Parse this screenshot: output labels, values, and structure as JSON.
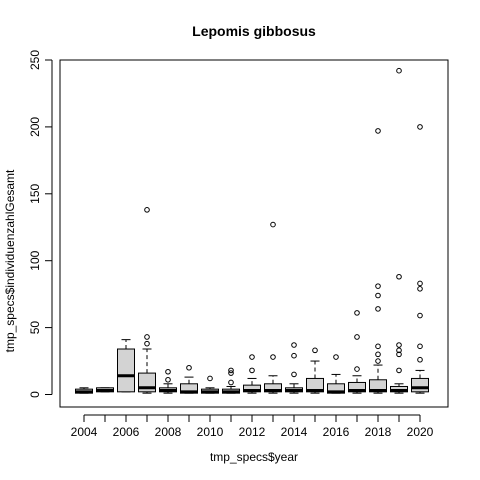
{
  "chart_data": {
    "type": "boxplot",
    "title": "Lepomis gibbosus",
    "xlabel": "tmp_specs$year",
    "ylabel": "tmp_specs$individuenzahlGesamt",
    "ylim": [
      0,
      250
    ],
    "y_ticks": [
      "0",
      "50",
      "100",
      "150",
      "200",
      "250"
    ],
    "x_tick_labels": [
      "2004",
      "2006",
      "2008",
      "2010",
      "2012",
      "2014",
      "2016",
      "2018",
      "2020"
    ],
    "box_fill": "#d3d3d3",
    "categories": [
      "2004",
      "2005",
      "2006",
      "2007",
      "2008",
      "2009",
      "2010",
      "2011",
      "2012",
      "2013",
      "2014",
      "2015",
      "2016",
      "2017",
      "2018",
      "2019",
      "2020"
    ],
    "boxes": [
      {
        "year": "2004",
        "whisker_low": 1,
        "q1": 1,
        "median": 2,
        "q3": 4,
        "whisker_high": 5,
        "outliers": []
      },
      {
        "year": "2005",
        "whisker_low": 2,
        "q1": 2,
        "median": 3,
        "q3": 5,
        "whisker_high": 5,
        "outliers": []
      },
      {
        "year": "2006",
        "whisker_low": 2,
        "q1": 2,
        "median": 14,
        "q3": 34,
        "whisker_high": 41,
        "outliers": []
      },
      {
        "year": "2007",
        "whisker_low": 1,
        "q1": 2,
        "median": 5,
        "q3": 16,
        "whisker_high": 34,
        "outliers": [
          38,
          43,
          138
        ]
      },
      {
        "year": "2008",
        "whisker_low": 1,
        "q1": 2,
        "median": 3,
        "q3": 5,
        "whisker_high": 8,
        "outliers": [
          11,
          17
        ]
      },
      {
        "year": "2009",
        "whisker_low": 1,
        "q1": 1,
        "median": 2,
        "q3": 8,
        "whisker_high": 13,
        "outliers": [
          20
        ]
      },
      {
        "year": "2010",
        "whisker_low": 1,
        "q1": 1,
        "median": 2,
        "q3": 4,
        "whisker_high": 5,
        "outliers": [
          12
        ]
      },
      {
        "year": "2011",
        "whisker_low": 1,
        "q1": 1,
        "median": 2,
        "q3": 4,
        "whisker_high": 6,
        "outliers": [
          9,
          16,
          18
        ]
      },
      {
        "year": "2012",
        "whisker_low": 1,
        "q1": 2,
        "median": 3,
        "q3": 7,
        "whisker_high": 12,
        "outliers": [
          18,
          28
        ]
      },
      {
        "year": "2013",
        "whisker_low": 1,
        "q1": 2,
        "median": 3,
        "q3": 8,
        "whisker_high": 14,
        "outliers": [
          28,
          127
        ]
      },
      {
        "year": "2014",
        "whisker_low": 1,
        "q1": 2,
        "median": 3,
        "q3": 5,
        "whisker_high": 8,
        "outliers": [
          15,
          29,
          37
        ]
      },
      {
        "year": "2015",
        "whisker_low": 1,
        "q1": 2,
        "median": 3,
        "q3": 12,
        "whisker_high": 25,
        "outliers": [
          33
        ]
      },
      {
        "year": "2016",
        "whisker_low": 1,
        "q1": 1,
        "median": 2,
        "q3": 8,
        "whisker_high": 15,
        "outliers": [
          28
        ]
      },
      {
        "year": "2017",
        "whisker_low": 1,
        "q1": 2,
        "median": 3,
        "q3": 9,
        "whisker_high": 14,
        "outliers": [
          19,
          43,
          61
        ]
      },
      {
        "year": "2018",
        "whisker_low": 1,
        "q1": 2,
        "median": 3,
        "q3": 11,
        "whisker_high": 22,
        "outliers": [
          25,
          30,
          36,
          64,
          74,
          81,
          197
        ]
      },
      {
        "year": "2019",
        "whisker_low": 1,
        "q1": 2,
        "median": 3,
        "q3": 6,
        "whisker_high": 8,
        "outliers": [
          18,
          30,
          33,
          37,
          88,
          242
        ]
      },
      {
        "year": "2020",
        "whisker_low": 1,
        "q1": 2,
        "median": 5,
        "q3": 12,
        "whisker_high": 18,
        "outliers": [
          26,
          36,
          59,
          79,
          83,
          200
        ]
      }
    ]
  }
}
